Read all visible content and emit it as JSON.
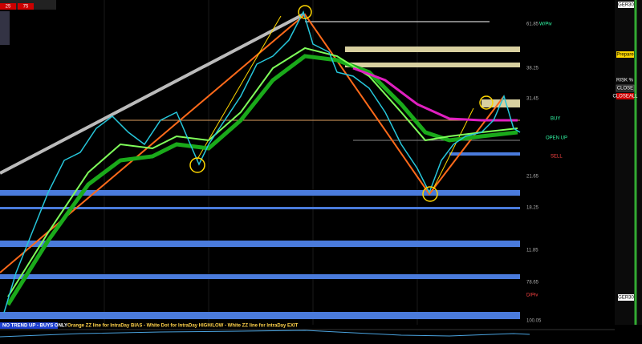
{
  "header": {
    "left_values": [
      "25",
      "75"
    ]
  },
  "price_labels": [
    "61.85",
    "38.25",
    "31.45",
    "21.65",
    "18.25",
    "11.85",
    "78.65",
    "100.05"
  ],
  "pivot_labels": {
    "weekly": "W/Piv",
    "daily": "D/Piv"
  },
  "signals": {
    "buy": "BUY",
    "open": "OPEN UP",
    "sell": "SELL"
  },
  "sidebar": {
    "symbol": "GER30",
    "buttons": [
      "Prepare",
      "CLOSE",
      "CLOSEALL"
    ],
    "risk": "RISK %",
    "bottom_symbol": "GER30"
  },
  "status": {
    "trend": "NO TREND UP - BUYS ONLY",
    "legend": "Orange ZZ line for IntraDay BIAS - White Dot for IntraDay HIGH/LOW - White ZZ line for IntraDay EXIT"
  }
}
